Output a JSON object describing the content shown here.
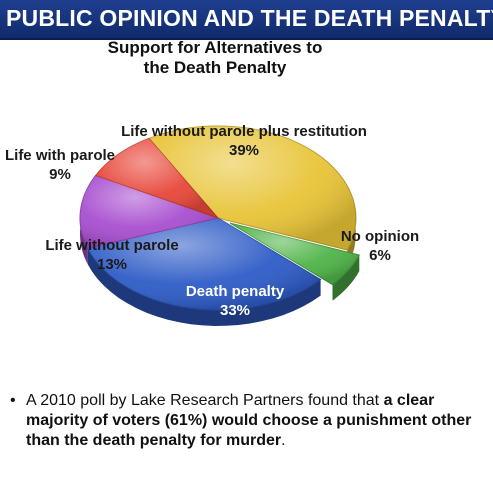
{
  "banner": {
    "title": "PUBLIC OPINION AND THE DEATH PENALTY"
  },
  "chart_data": {
    "type": "pie",
    "title_line1": "Support for Alternatives to",
    "title_line2": "the Death Penalty",
    "slices": [
      {
        "label": "Life without parole plus restitution",
        "value": 39,
        "value_label": "39%",
        "color": "#e8c437"
      },
      {
        "label": "No opinion",
        "value": 6,
        "value_label": "6%",
        "color": "#4fb448"
      },
      {
        "label": "Death penalty",
        "value": 33,
        "value_label": "33%",
        "color": "#2e5cc7"
      },
      {
        "label": "Life without parole",
        "value": 13,
        "value_label": "13%",
        "color": "#a84fd0"
      },
      {
        "label": "Life with parole",
        "value": 9,
        "value_label": "9%",
        "color": "#e8473a"
      }
    ]
  },
  "bullet": {
    "dot": "•",
    "lead": "A 2010 poll by Lake Research Partners found that",
    "bold": "a clear majority of voters (61%) would choose a punishment other than the death penalty for murder",
    "tail": "."
  }
}
